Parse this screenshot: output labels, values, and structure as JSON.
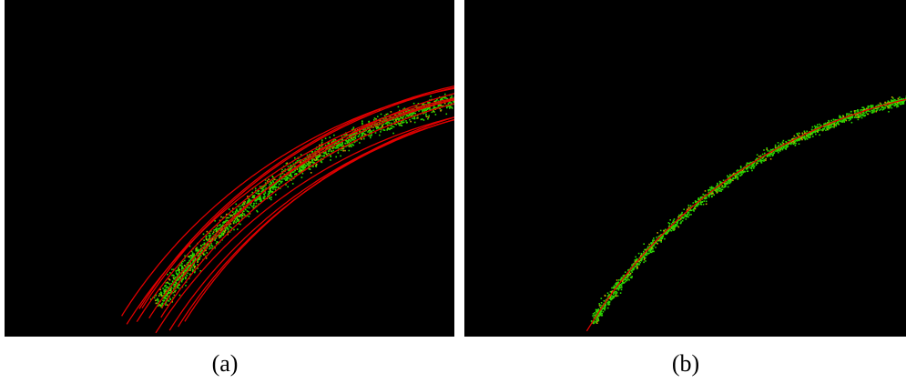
{
  "panels": [
    {
      "id": "a",
      "caption": "(a)",
      "description_colors": {
        "background": "#000000",
        "points": "#2bd600",
        "curves": "#e00000"
      },
      "num_fitted_curves": 12
    },
    {
      "id": "b",
      "caption": "(b)",
      "description_colors": {
        "background": "#000000",
        "points": "#2bd600",
        "curves": "#e00000"
      },
      "num_fitted_curves": 1
    }
  ]
}
